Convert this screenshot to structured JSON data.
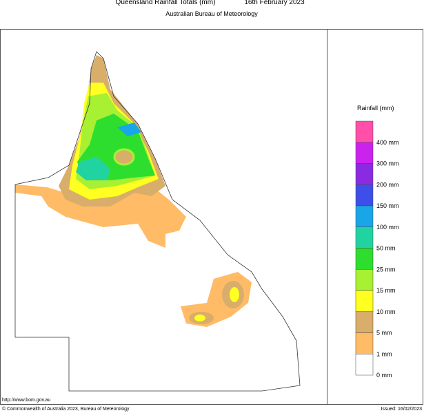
{
  "header": {
    "title": "Queensland Rainfall Totals (mm)",
    "date": "16th February 2023",
    "subtitle": "Australian Bureau of Meteorology"
  },
  "legend": {
    "title": "Rainfall (mm)",
    "labels": [
      "400 mm",
      "300 mm",
      "200 mm",
      "150 mm",
      "100 mm",
      "50 mm",
      "25 mm",
      "15 mm",
      "10 mm",
      "5 mm",
      "1 mm",
      "0 mm"
    ],
    "colors": [
      "#ff4fa8",
      "#cc22ee",
      "#8a2be2",
      "#3d4fe8",
      "#19a6e8",
      "#22d3a2",
      "#2ede2e",
      "#a8f032",
      "#ffff22",
      "#d9ad6a",
      "#ffbb66",
      "#ffffff"
    ]
  },
  "footer": {
    "url": "http://www.bom.gov.au",
    "copyright": "© Commonwealth of Australia 2023, Bureau of Meteorology",
    "issued": "Issued: 16/02/2023"
  }
}
